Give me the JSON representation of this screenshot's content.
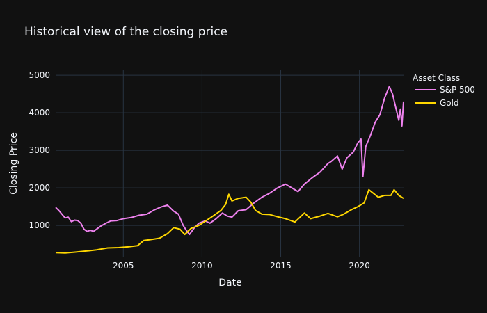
{
  "chart_data": {
    "type": "line",
    "title": "Historical view of the closing price",
    "xlabel": "Date",
    "ylabel": "Closing Price",
    "xlim": [
      2000.7,
      2022.8
    ],
    "ylim": [
      150,
      5150
    ],
    "x_ticks": [
      2005,
      2010,
      2015,
      2020
    ],
    "x_tick_labels": [
      "2005",
      "2010",
      "2015",
      "2020"
    ],
    "y_ticks": [
      1000,
      2000,
      3000,
      4000,
      5000
    ],
    "y_tick_labels": [
      "1000",
      "2000",
      "3000",
      "4000",
      "5000"
    ],
    "grid": true,
    "legend": {
      "title": "Asset Class",
      "position": "top-right"
    },
    "series": [
      {
        "name": "S&P 500",
        "color": "#ee82ee",
        "x": [
          2000.7,
          2000.9,
          2001.1,
          2001.3,
          2001.5,
          2001.7,
          2001.9,
          2002.1,
          2002.3,
          2002.5,
          2002.7,
          2002.9,
          2003.1,
          2003.3,
          2003.6,
          2003.9,
          2004.2,
          2004.6,
          2005.0,
          2005.5,
          2006.0,
          2006.5,
          2007.0,
          2007.4,
          2007.8,
          2008.2,
          2008.5,
          2008.8,
          2009.0,
          2009.2,
          2009.5,
          2009.8,
          2010.2,
          2010.5,
          2010.9,
          2011.3,
          2011.6,
          2011.9,
          2012.3,
          2012.8,
          2013.3,
          2013.8,
          2014.3,
          2014.8,
          2015.3,
          2015.7,
          2016.1,
          2016.5,
          2017.0,
          2017.5,
          2018.0,
          2018.2,
          2018.6,
          2018.9,
          2019.2,
          2019.6,
          2019.9,
          2020.1,
          2020.22,
          2020.4,
          2020.7,
          2021.0,
          2021.3,
          2021.6,
          2021.9,
          2022.1,
          2022.3,
          2022.5,
          2022.6,
          2022.7,
          2022.8
        ],
        "values": [
          1480,
          1400,
          1300,
          1200,
          1220,
          1100,
          1140,
          1130,
          1060,
          900,
          840,
          870,
          840,
          900,
          990,
          1060,
          1120,
          1130,
          1180,
          1210,
          1270,
          1300,
          1420,
          1490,
          1540,
          1380,
          1300,
          1000,
          870,
          760,
          930,
          1060,
          1120,
          1060,
          1180,
          1330,
          1250,
          1220,
          1390,
          1420,
          1600,
          1750,
          1860,
          2000,
          2100,
          2000,
          1900,
          2100,
          2270,
          2420,
          2650,
          2700,
          2850,
          2500,
          2800,
          2950,
          3200,
          3300,
          2300,
          3100,
          3400,
          3750,
          3950,
          4400,
          4700,
          4500,
          4150,
          3800,
          4100,
          3650,
          4300
        ]
      },
      {
        "name": "Gold",
        "color": "#ffd700",
        "x": [
          2000.7,
          2001.3,
          2002.0,
          2002.7,
          2003.3,
          2004.0,
          2004.7,
          2005.3,
          2005.9,
          2006.3,
          2006.7,
          2007.3,
          2007.8,
          2008.2,
          2008.6,
          2008.9,
          2009.3,
          2009.8,
          2010.2,
          2010.7,
          2011.2,
          2011.5,
          2011.7,
          2011.9,
          2012.3,
          2012.8,
          2013.1,
          2013.4,
          2013.8,
          2014.3,
          2014.8,
          2015.3,
          2015.9,
          2016.5,
          2016.9,
          2017.5,
          2018.0,
          2018.6,
          2019.0,
          2019.5,
          2019.9,
          2020.3,
          2020.6,
          2020.9,
          2021.2,
          2021.6,
          2022.0,
          2022.2,
          2022.5,
          2022.8
        ],
        "values": [
          275,
          265,
          290,
          320,
          350,
          400,
          410,
          430,
          460,
          600,
          620,
          660,
          780,
          940,
          900,
          760,
          920,
          1000,
          1110,
          1250,
          1400,
          1560,
          1830,
          1650,
          1720,
          1750,
          1620,
          1400,
          1300,
          1290,
          1230,
          1180,
          1090,
          1330,
          1180,
          1250,
          1320,
          1230,
          1300,
          1420,
          1500,
          1600,
          1950,
          1850,
          1750,
          1800,
          1800,
          1950,
          1800,
          1720
        ]
      }
    ]
  }
}
